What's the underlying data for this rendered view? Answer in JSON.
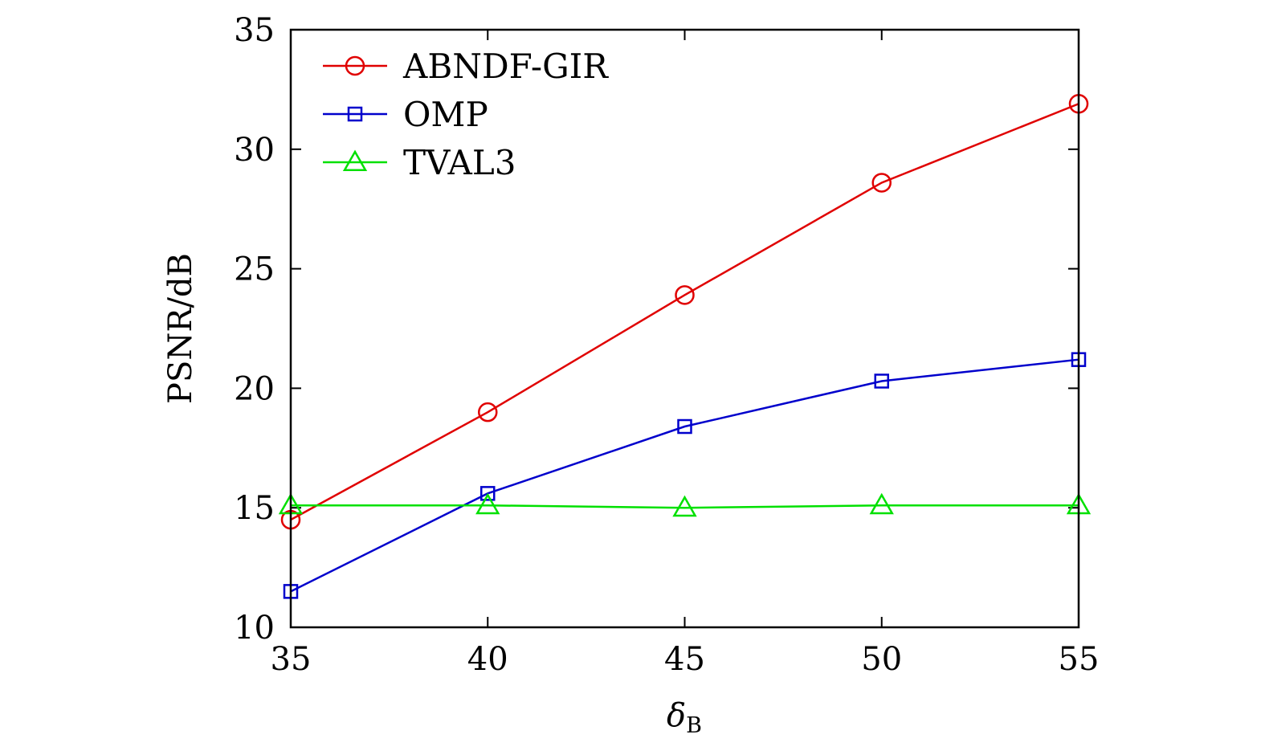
{
  "chart_data": {
    "type": "line",
    "title": "",
    "xlabel": "δ",
    "xlabel_sub": "B",
    "ylabel": "PSNR/dB",
    "x": [
      35,
      40,
      45,
      50,
      55
    ],
    "xlim": [
      35,
      55
    ],
    "ylim": [
      10,
      35
    ],
    "xticks": [
      "35",
      "40",
      "45",
      "50",
      "55"
    ],
    "yticks": [
      "10",
      "15",
      "20",
      "25",
      "30",
      "35"
    ],
    "grid": false,
    "legend_position": "top-left",
    "series": [
      {
        "name": "ABNDF-GIR",
        "marker": "circle",
        "color": "#e00000",
        "values": [
          14.5,
          19.0,
          23.9,
          28.6,
          31.9
        ]
      },
      {
        "name": "OMP",
        "marker": "square",
        "color": "#0000cc",
        "values": [
          11.5,
          15.6,
          18.4,
          20.3,
          21.2
        ]
      },
      {
        "name": "TVAL3",
        "marker": "triangle",
        "color": "#00e000",
        "values": [
          15.1,
          15.1,
          15.0,
          15.1,
          15.1
        ]
      }
    ]
  }
}
